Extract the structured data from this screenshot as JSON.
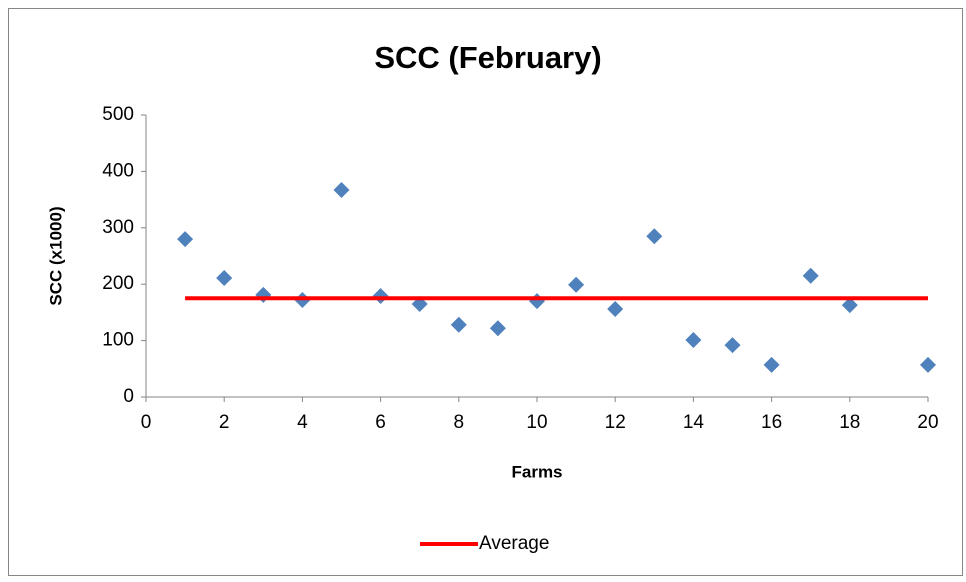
{
  "chart_data": {
    "type": "scatter",
    "title": "SCC (February)",
    "xlabel": "Farms",
    "ylabel": "SCC (x1000)",
    "xlim": [
      0,
      20
    ],
    "xticks": [
      0,
      2,
      4,
      6,
      8,
      10,
      12,
      14,
      16,
      18,
      20
    ],
    "ylim": [
      0,
      500
    ],
    "yticks": [
      0,
      100,
      200,
      300,
      400,
      500
    ],
    "grid": false,
    "legend": "bottom",
    "series": [
      {
        "type": "scatter",
        "color": "#4f81bd",
        "x": [
          1,
          2,
          3,
          4,
          5,
          6,
          7,
          8,
          9,
          10,
          11,
          12,
          13,
          14,
          15,
          16,
          17,
          18,
          20
        ],
        "values": [
          280,
          211,
          181,
          172,
          367,
          179,
          165,
          128,
          122,
          170,
          199,
          156,
          285,
          101,
          92,
          57,
          215,
          163,
          57
        ]
      },
      {
        "type": "line",
        "name": "Average",
        "color": "#ff0000",
        "x": [
          1,
          20
        ],
        "values": [
          175,
          175
        ]
      }
    ]
  }
}
